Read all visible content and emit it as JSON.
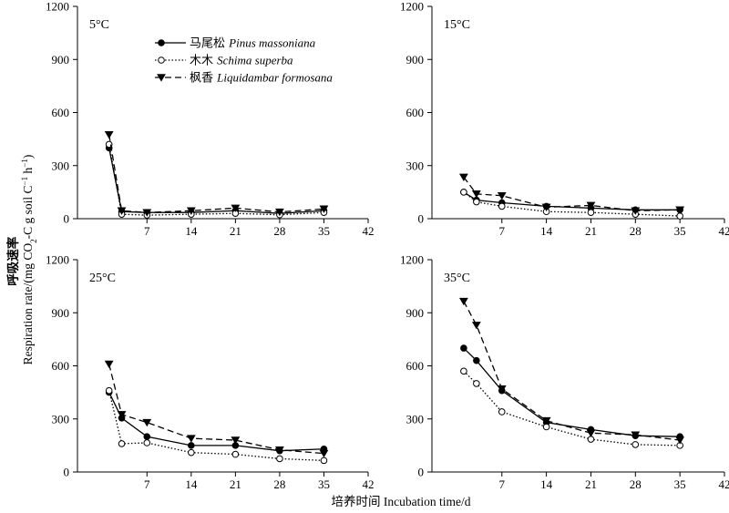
{
  "axis_titles": {
    "y_cn": "呼吸速率",
    "y_en": "Respiration rate/(mg CO",
    "y_en_sub": "2",
    "y_en_mid": "-C g soil C",
    "y_en_sup1": "−1",
    "y_en_h": " h",
    "y_en_sup2": "−1",
    "y_en_end": ")",
    "x": "培养时间 Incubation time/d"
  },
  "legend": [
    {
      "cn": "马尾松",
      "latin": "Pinus massoniana"
    },
    {
      "cn": "木木",
      "latin": "Schima superba"
    },
    {
      "cn": "枫香",
      "latin": "Liquidambar formosana"
    }
  ],
  "colors": {
    "series": "#000000",
    "background": "#ffffff"
  },
  "markers": [
    "filled-circle",
    "open-circle",
    "filled-triangle-down"
  ],
  "line_styles": [
    "solid",
    "dotted",
    "dashed"
  ],
  "chart_data": [
    {
      "type": "line",
      "panel_label": "5°C",
      "x": [
        1,
        3,
        7,
        14,
        21,
        28,
        35
      ],
      "xticks": [
        7,
        14,
        21,
        28,
        35,
        42
      ],
      "yticks": [
        0,
        300,
        600,
        900,
        1200
      ],
      "xlim": [
        -4,
        42
      ],
      "ylim": [
        0,
        1200
      ],
      "series": [
        {
          "name": "Pinus massoniana",
          "values": [
            400,
            40,
            35,
            35,
            45,
            30,
            45
          ]
        },
        {
          "name": "Schima superba",
          "values": [
            420,
            25,
            20,
            25,
            30,
            22,
            35
          ]
        },
        {
          "name": "Liquidambar formosana",
          "values": [
            475,
            45,
            35,
            45,
            60,
            38,
            55
          ]
        }
      ]
    },
    {
      "type": "line",
      "panel_label": "15°C",
      "x": [
        1,
        3,
        7,
        14,
        21,
        28,
        35
      ],
      "xticks": [
        7,
        14,
        21,
        28,
        35,
        42
      ],
      "yticks": [
        0,
        300,
        600,
        900,
        1200
      ],
      "xlim": [
        -4,
        42
      ],
      "ylim": [
        0,
        1200
      ],
      "series": [
        {
          "name": "Pinus massoniana",
          "values": [
            150,
            105,
            90,
            70,
            60,
            50,
            50
          ]
        },
        {
          "name": "Schima superba",
          "values": [
            150,
            95,
            70,
            40,
            35,
            25,
            15
          ]
        },
        {
          "name": "Liquidambar formosana",
          "values": [
            235,
            140,
            130,
            65,
            75,
            45,
            50
          ]
        }
      ]
    },
    {
      "type": "line",
      "panel_label": "25°C",
      "x": [
        1,
        3,
        7,
        14,
        21,
        28,
        35
      ],
      "xticks": [
        7,
        14,
        21,
        28,
        35,
        42
      ],
      "yticks": [
        0,
        300,
        600,
        900,
        1200
      ],
      "xlim": [
        -4,
        42
      ],
      "ylim": [
        0,
        1200
      ],
      "series": [
        {
          "name": "Pinus massoniana",
          "values": [
            450,
            305,
            200,
            150,
            150,
            120,
            130
          ]
        },
        {
          "name": "Schima superba",
          "values": [
            460,
            160,
            165,
            110,
            100,
            75,
            65
          ]
        },
        {
          "name": "Liquidambar formosana",
          "values": [
            610,
            325,
            280,
            190,
            180,
            125,
            105
          ]
        }
      ]
    },
    {
      "type": "line",
      "panel_label": "35°C",
      "x": [
        1,
        3,
        7,
        14,
        21,
        28,
        35
      ],
      "xticks": [
        7,
        14,
        21,
        28,
        35,
        42
      ],
      "yticks": [
        0,
        300,
        600,
        900,
        1200
      ],
      "xlim": [
        -4,
        42
      ],
      "ylim": [
        0,
        1200
      ],
      "series": [
        {
          "name": "Pinus massoniana",
          "values": [
            700,
            630,
            460,
            280,
            240,
            205,
            200
          ]
        },
        {
          "name": "Schima superba",
          "values": [
            570,
            500,
            340,
            255,
            185,
            155,
            150
          ]
        },
        {
          "name": "Liquidambar formosana",
          "values": [
            965,
            830,
            470,
            290,
            220,
            210,
            180
          ]
        }
      ]
    }
  ]
}
